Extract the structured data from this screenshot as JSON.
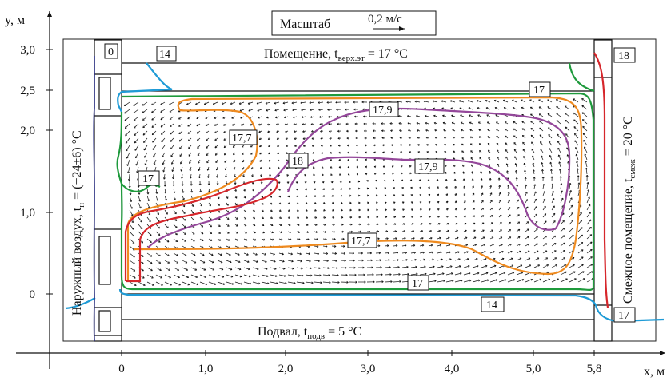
{
  "axes": {
    "y_label": "y, м",
    "x_label": "x, м",
    "y_ticks": [
      "0",
      "1,0",
      "2,0",
      "2,5",
      "3,0"
    ],
    "x_ticks": [
      "0",
      "1,0",
      "2,0",
      "3,0",
      "4,0",
      "5,0",
      "5,8"
    ]
  },
  "scale": {
    "label": "Масштаб",
    "value": "0,2 м/с"
  },
  "regions": {
    "top": "Помещение, t",
    "top_sub": "верх.эт",
    "top_val": " = 17 °C",
    "bottom": "Подвал, t",
    "bottom_sub": "подв",
    "bottom_val": " = 5 °C",
    "left": "Наружный воздух, t",
    "left_sub": "н",
    "left_val": " = (−24±6) °C",
    "right": "Смежное помещение, t",
    "right_sub": "смеж",
    "right_val": " = 20 °C"
  },
  "isotherms": {
    "i0": "0",
    "i14a": "14",
    "i14b": "14",
    "i17a": "17",
    "i17b": "17",
    "i17c": "17",
    "i17d": "17",
    "i177a": "17,7",
    "i177b": "17,7",
    "i179a": "17,9",
    "i179b": "17,9",
    "i18a": "18",
    "i18b": "18"
  },
  "colors": {
    "blue": "#1f9bd6",
    "green": "#1e9a3c",
    "orange": "#ee8a1f",
    "purple": "#94479a",
    "red": "#d6262b",
    "navy": "#2a2f86"
  }
}
